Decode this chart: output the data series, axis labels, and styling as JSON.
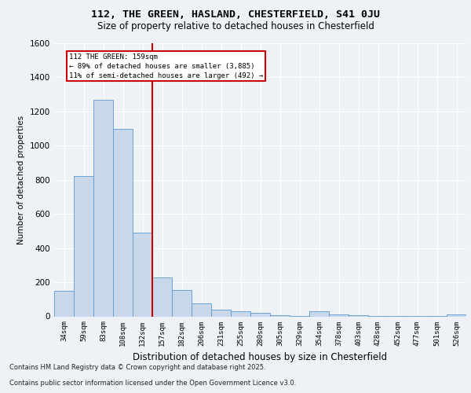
{
  "title1": "112, THE GREEN, HASLAND, CHESTERFIELD, S41 0JU",
  "title2": "Size of property relative to detached houses in Chesterfield",
  "xlabel": "Distribution of detached houses by size in Chesterfield",
  "ylabel": "Number of detached properties",
  "bar_color": "#c8d8ea",
  "bar_edge_color": "#5b9bd5",
  "categories": [
    "34sqm",
    "59sqm",
    "83sqm",
    "108sqm",
    "132sqm",
    "157sqm",
    "182sqm",
    "206sqm",
    "231sqm",
    "255sqm",
    "280sqm",
    "305sqm",
    "329sqm",
    "354sqm",
    "378sqm",
    "403sqm",
    "428sqm",
    "452sqm",
    "477sqm",
    "501sqm",
    "526sqm"
  ],
  "values": [
    150,
    820,
    1270,
    1100,
    490,
    230,
    155,
    75,
    40,
    30,
    20,
    5,
    2,
    30,
    10,
    5,
    2,
    1,
    1,
    1,
    10
  ],
  "vline_idx": 5,
  "vline_color": "#cc0000",
  "annotation_title": "112 THE GREEN: 159sqm",
  "annotation_line1": "← 89% of detached houses are smaller (3,885)",
  "annotation_line2": "11% of semi-detached houses are larger (492) →",
  "ylim": [
    0,
    1600
  ],
  "yticks": [
    0,
    200,
    400,
    600,
    800,
    1000,
    1200,
    1400,
    1600
  ],
  "footer1": "Contains HM Land Registry data © Crown copyright and database right 2025.",
  "footer2": "Contains public sector information licensed under the Open Government Licence v3.0.",
  "background_color": "#eef2f7",
  "plot_bg_color": "#eef2f7",
  "title1_fontsize": 9.5,
  "title2_fontsize": 8.5
}
